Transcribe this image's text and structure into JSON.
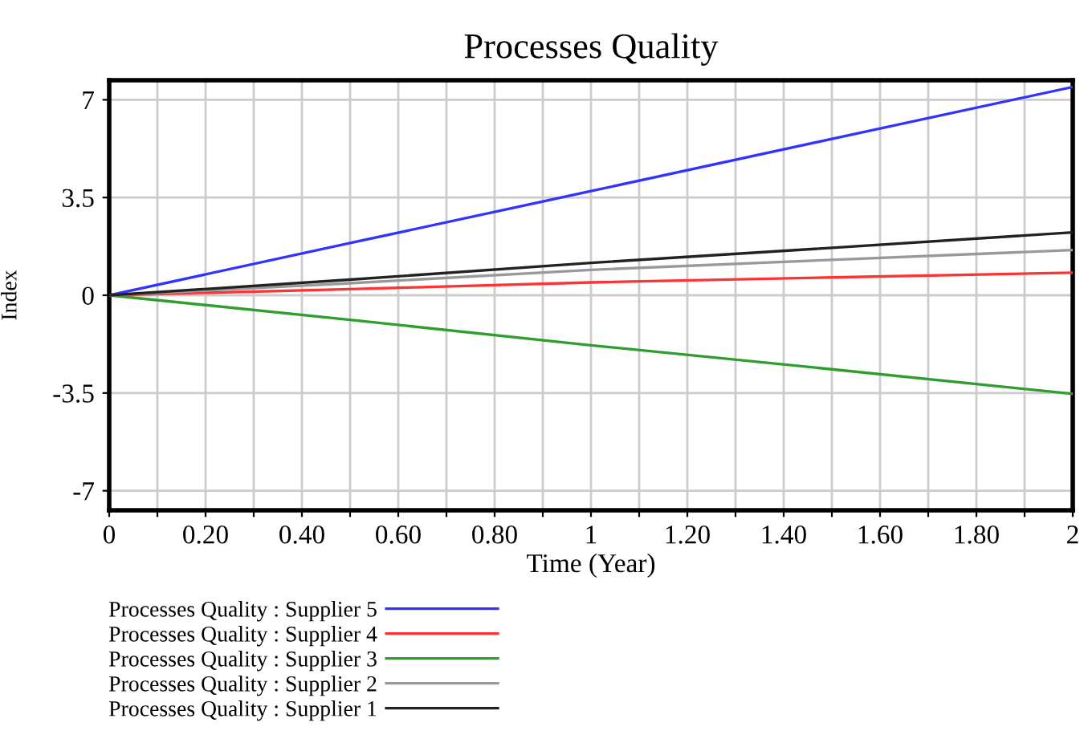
{
  "chart_data": {
    "type": "line",
    "title": "Processes Quality",
    "xlabel": "Time (Year)",
    "ylabel": "Index",
    "x": [
      0,
      0.5,
      1,
      1.5,
      2
    ],
    "series": [
      {
        "name": "Processes Quality : Supplier 5",
        "color": "#3333ff",
        "values": [
          0,
          1.87,
          3.73,
          5.6,
          7.46
        ]
      },
      {
        "name": "Processes Quality : Supplier 4",
        "color": "#ff3333",
        "values": [
          0,
          0.22,
          0.46,
          0.64,
          0.81
        ]
      },
      {
        "name": "Processes Quality : Supplier 3",
        "color": "#2e9e2e",
        "values": [
          0,
          -0.88,
          -1.79,
          -2.65,
          -3.53
        ]
      },
      {
        "name": "Processes Quality : Supplier 2",
        "color": "#999999",
        "values": [
          0,
          0.43,
          0.91,
          1.27,
          1.62
        ]
      },
      {
        "name": "Processes Quality : Supplier 1",
        "color": "#222222",
        "values": [
          0,
          0.56,
          1.16,
          1.7,
          2.25
        ]
      }
    ],
    "xlim": [
      0,
      2
    ],
    "ylim": [
      -7.7,
      7.7
    ],
    "xticks": [
      0,
      {
        "value": 0.1,
        "label": null
      },
      {
        "value": 0.2,
        "label": "0.20"
      },
      {
        "value": 0.3,
        "label": null
      },
      {
        "value": 0.4,
        "label": "0.40"
      },
      {
        "value": 0.5,
        "label": null
      },
      {
        "value": 0.6,
        "label": "0.60"
      },
      {
        "value": 0.7,
        "label": null
      },
      {
        "value": 0.8,
        "label": "0.80"
      },
      {
        "value": 0.9,
        "label": null
      },
      1,
      {
        "value": 1.1,
        "label": null
      },
      {
        "value": 1.2,
        "label": "1.20"
      },
      {
        "value": 1.3,
        "label": null
      },
      {
        "value": 1.4,
        "label": "1.40"
      },
      {
        "value": 1.5,
        "label": null
      },
      {
        "value": 1.6,
        "label": "1.60"
      },
      {
        "value": 1.7,
        "label": null
      },
      {
        "value": 1.8,
        "label": "1.80"
      },
      {
        "value": 1.9,
        "label": null
      },
      2
    ],
    "yticks": [
      -7,
      -3.5,
      0,
      3.5,
      7
    ],
    "grid": true,
    "legend": "bottom",
    "marker": "none",
    "line_style": "solid"
  }
}
